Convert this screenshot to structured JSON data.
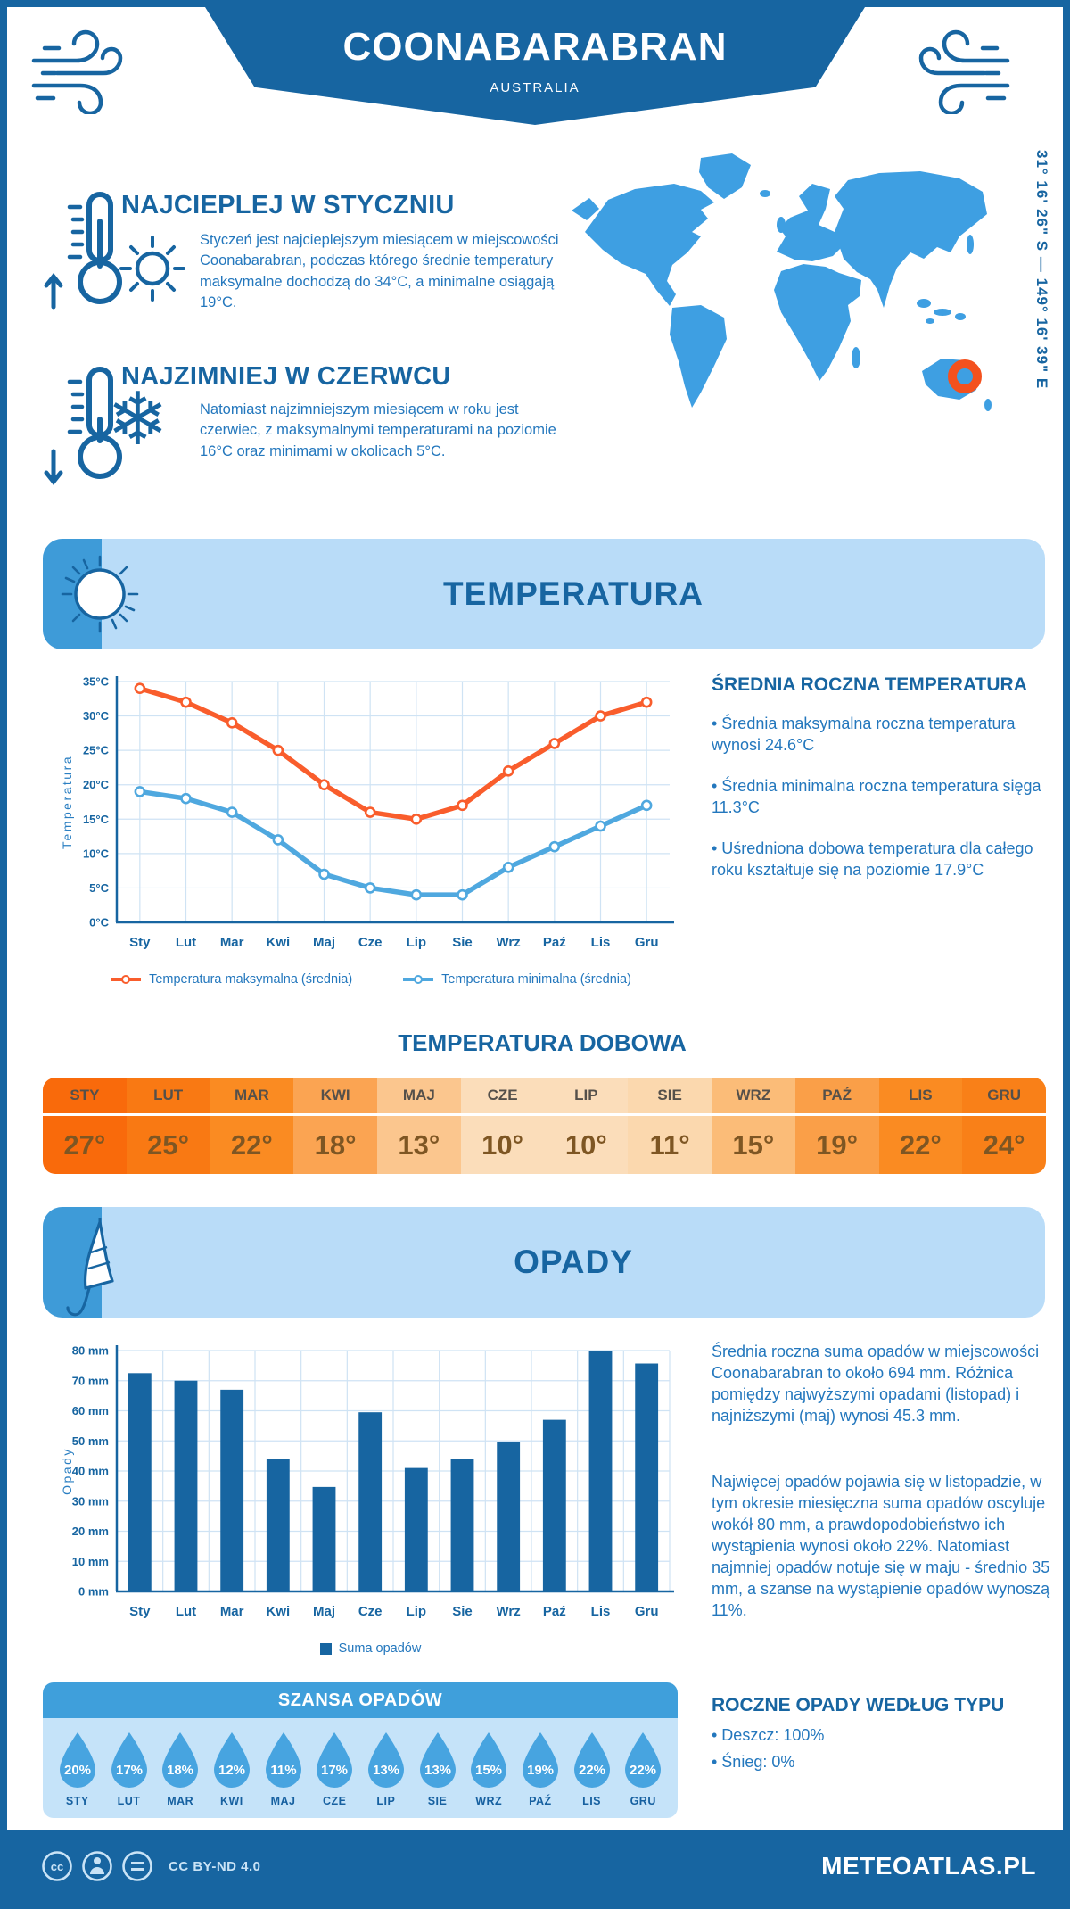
{
  "header": {
    "title": "COONABARABRAN",
    "subtitle": "AUSTRALIA",
    "coordinates": "31° 16' 26\" S — 149° 16' 39\" E"
  },
  "highlights": [
    {
      "heading": "NAJCIEPLEJ W STYCZNIU",
      "icon": "sun-icon",
      "text": "Styczeń jest najcieplejszym miesiącem w miejscowości Coonabarabran, podczas którego średnie temperatury maksymalne dochodzą do 34°C, a minimalne osiągają 19°C."
    },
    {
      "heading": "NAJZIMNIEJ W CZERWCU",
      "icon": "snowflake-icon",
      "text": "Natomiast najzimniejszym miesiącem w roku jest czerwiec, z maksymalnymi temperaturami na poziomie 16°C oraz minimami w okolicach 5°C."
    }
  ],
  "sections": {
    "temperature": "TEMPERATURA",
    "precipitation": "OPADY"
  },
  "chart_data": [
    {
      "type": "line",
      "categories": [
        "Sty",
        "Lut",
        "Mar",
        "Kwi",
        "Maj",
        "Cze",
        "Lip",
        "Sie",
        "Wrz",
        "Paź",
        "Lis",
        "Gru"
      ],
      "series": [
        {
          "name": "Temperatura maksymalna (średnia)",
          "color": "#F95D2C",
          "values": [
            34,
            32,
            29,
            25,
            20,
            16,
            15,
            17,
            22,
            26,
            30,
            32
          ]
        },
        {
          "name": "Temperatura minimalna (średnia)",
          "color": "#4FA8DF",
          "values": [
            19,
            18,
            16,
            12,
            7,
            5,
            4,
            4,
            8,
            11,
            14,
            17
          ]
        }
      ],
      "ylabel": "Temperatura",
      "ylim": [
        0,
        35
      ],
      "ytick_step": 5,
      "ytick_suffix": "°C",
      "grid": true,
      "legend_position": "bottom"
    },
    {
      "type": "bar",
      "categories": [
        "Sty",
        "Lut",
        "Mar",
        "Kwi",
        "Maj",
        "Cze",
        "Lip",
        "Sie",
        "Wrz",
        "Paź",
        "Lis",
        "Gru"
      ],
      "values": [
        72.5,
        70,
        67,
        44,
        34.7,
        59.5,
        41,
        44,
        49.5,
        57,
        80,
        75.7
      ],
      "bar_color": "#1765A1",
      "ylabel": "Opady",
      "ylim": [
        0,
        80
      ],
      "ytick_step": 10,
      "ytick_suffix": " mm",
      "grid": true,
      "legend": "Suma opadów",
      "legend_position": "bottom"
    }
  ],
  "annual_temperature": {
    "heading": "ŚREDNIA ROCZNA TEMPERATURA",
    "bullets": [
      "• Średnia maksymalna roczna temperatura wynosi 24.6°C",
      "• Średnia minimalna roczna temperatura sięga 11.3°C",
      "• Uśredniona dobowa temperatura dla całego roku kształtuje się na poziomie 17.9°C"
    ]
  },
  "daily_temperature": {
    "heading": "TEMPERATURA DOBOWA",
    "months": [
      "STY",
      "LUT",
      "MAR",
      "KWI",
      "MAJ",
      "CZE",
      "LIP",
      "SIE",
      "WRZ",
      "PAŹ",
      "LIS",
      "GRU"
    ],
    "values": [
      "27°",
      "25°",
      "22°",
      "18°",
      "13°",
      "10°",
      "10°",
      "11°",
      "15°",
      "19°",
      "22°",
      "24°"
    ],
    "cell_colors": [
      "#F96A0B",
      "#F97913",
      "#FA8B22",
      "#FBA452",
      "#FBC68E",
      "#FBDDBA",
      "#FBDDBA",
      "#FBD8AE",
      "#FBBC78",
      "#FA9F48",
      "#FA8B22",
      "#F98018"
    ]
  },
  "precipitation_text": {
    "paragraphs": [
      "Średnia roczna suma opadów w miejscowości Coonabarabran to około 694 mm. Różnica pomiędzy najwyższymi opadami (listopad) i najniższymi (maj) wynosi 45.3 mm.",
      "Najwięcej opadów pojawia się w listopadzie, w tym okresie miesięczna suma opadów oscyluje wokół 80 mm, a prawdopodobieństwo ich wystąpienia wynosi około 22%. Natomiast najmniej opadów notuje się w maju - średnio 35 mm, a szanse na wystąpienie opadów wynoszą 11%."
    ]
  },
  "precipitation_type": {
    "heading": "ROCZNE OPADY WEDŁUG TYPU",
    "bullets": [
      "• Deszcz: 100%",
      "• Śnieg: 0%"
    ]
  },
  "rain_chance": {
    "heading": "SZANSA OPADÓW",
    "months": [
      "STY",
      "LUT",
      "MAR",
      "KWI",
      "MAJ",
      "CZE",
      "LIP",
      "SIE",
      "WRZ",
      "PAŹ",
      "LIS",
      "GRU"
    ],
    "values": [
      "20%",
      "17%",
      "18%",
      "12%",
      "11%",
      "17%",
      "13%",
      "13%",
      "15%",
      "19%",
      "22%",
      "22%"
    ],
    "drop_color": "#47A4E0"
  },
  "colors": {
    "primary": "#1765A1",
    "body_text": "#2377BD",
    "banner_light": "#B9DCF8",
    "banner_tab": "#3E9BD8",
    "map_blue": "#3E9FE2",
    "marker_orange": "#F4511E",
    "grid": "#CFE3F4"
  },
  "footer": {
    "license": "CC BY-ND 4.0",
    "site": "METEOATLAS.PL"
  }
}
